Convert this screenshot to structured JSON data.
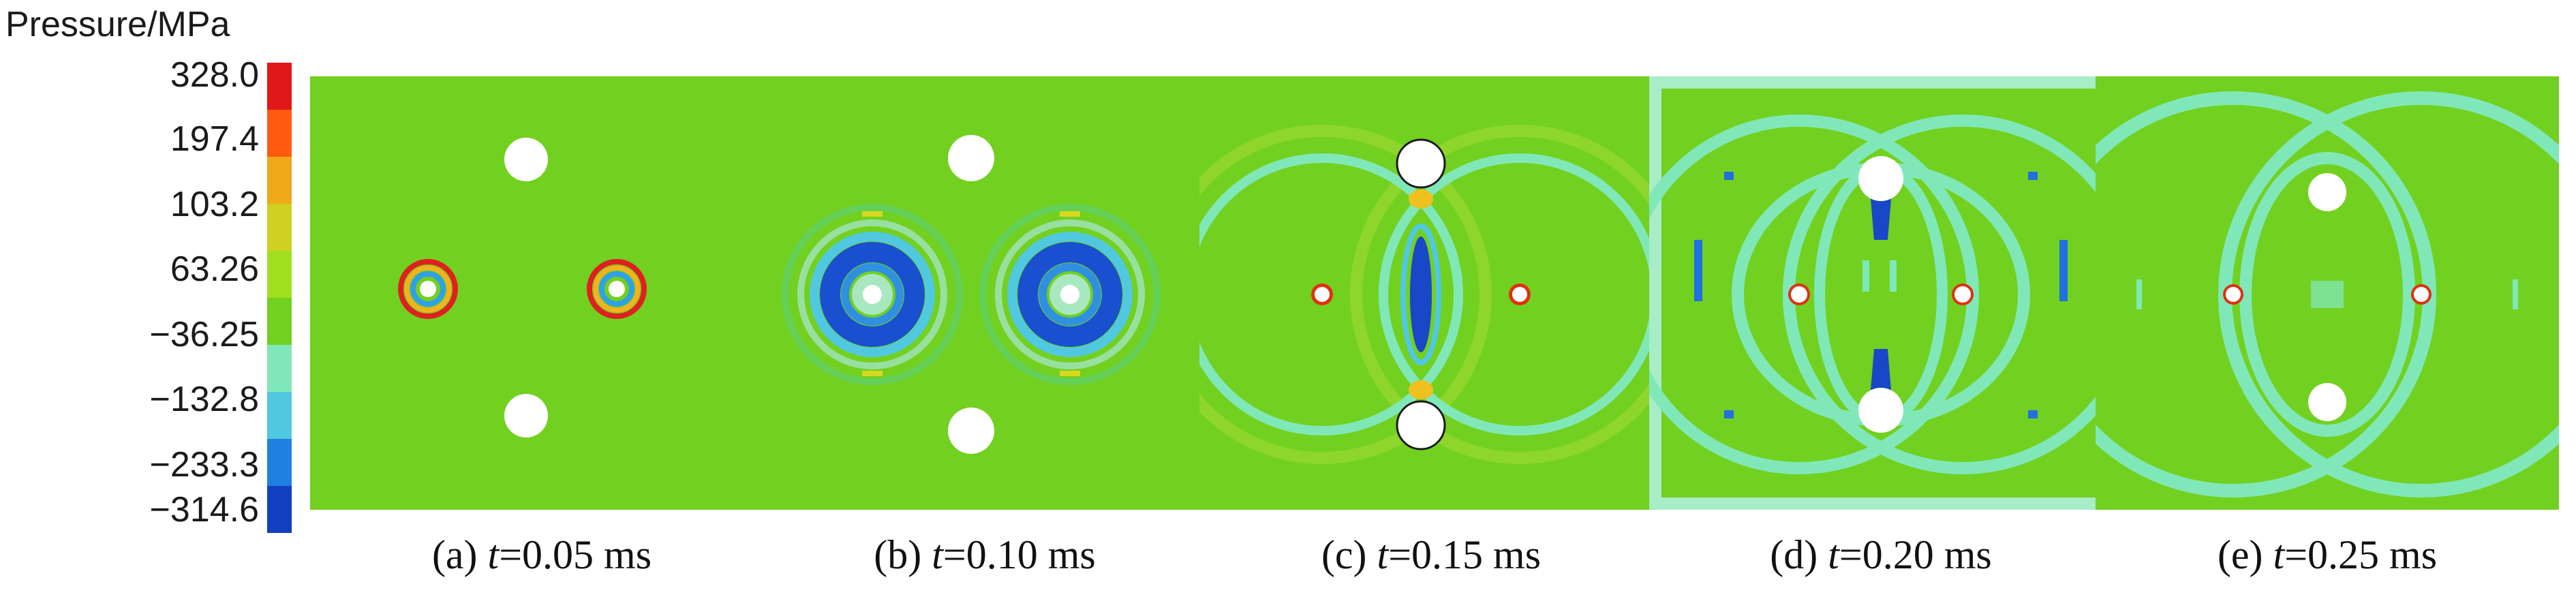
{
  "colorbar": {
    "title": "Pressure/MPa",
    "ticks": [
      "328.0",
      "197.4",
      "103.2",
      "63.26",
      "−36.25",
      "−132.8",
      "−233.3",
      "−314.6"
    ],
    "colors": [
      "#e01818",
      "#ff5a10",
      "#f0a818",
      "#d0d020",
      "#a0e020",
      "#72d020",
      "#80e8b8",
      "#50c8e0",
      "#2080e0",
      "#1040c0"
    ]
  },
  "panels": [
    {
      "prefix": "(a) ",
      "var": "t",
      "rest": "=0.05 ms"
    },
    {
      "prefix": "(b) ",
      "var": "t",
      "rest": "=0.10 ms"
    },
    {
      "prefix": "(c) ",
      "var": "t",
      "rest": "=0.15 ms"
    },
    {
      "prefix": "(d) ",
      "var": "t",
      "rest": "=0.20 ms"
    },
    {
      "prefix": "(e) ",
      "var": "t",
      "rest": "=0.25 ms"
    }
  ]
}
